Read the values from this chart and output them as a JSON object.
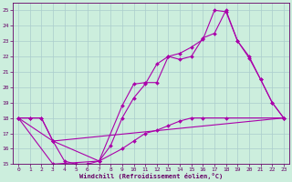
{
  "title": "",
  "xlabel": "Windchill (Refroidissement éolien,°C)",
  "xlim": [
    -0.5,
    23.5
  ],
  "ylim": [
    15,
    25.5
  ],
  "xticks": [
    0,
    1,
    2,
    3,
    4,
    5,
    6,
    7,
    8,
    9,
    10,
    11,
    12,
    13,
    14,
    15,
    16,
    17,
    18,
    19,
    20,
    21,
    22,
    23
  ],
  "yticks": [
    15,
    16,
    17,
    18,
    19,
    20,
    21,
    22,
    23,
    24,
    25
  ],
  "bg_color": "#cceedd",
  "grid_color": "#aacccc",
  "line_color": "#aa00aa",
  "line1_x": [
    0,
    1,
    2,
    3,
    4,
    5,
    6,
    7,
    8,
    9,
    10,
    11,
    12,
    13,
    14,
    15,
    16,
    17,
    18,
    19,
    20,
    21,
    22,
    23
  ],
  "line1_y": [
    18.0,
    18.0,
    18.0,
    16.5,
    15.2,
    15.0,
    15.0,
    15.2,
    16.2,
    18.0,
    19.3,
    20.2,
    21.5,
    22.0,
    22.2,
    22.6,
    23.1,
    25.0,
    24.9,
    23.0,
    21.9,
    20.5,
    19.0,
    18.0
  ],
  "line2_x": [
    0,
    3,
    7,
    9,
    10,
    11,
    12,
    13,
    14,
    15,
    16,
    17,
    18,
    19,
    20,
    21,
    22,
    23
  ],
  "line2_y": [
    18.0,
    16.5,
    15.2,
    18.8,
    20.2,
    20.3,
    20.3,
    22.0,
    21.8,
    22.0,
    23.2,
    23.5,
    25.0,
    23.0,
    22.0,
    20.5,
    19.0,
    18.0
  ],
  "line3_x": [
    0,
    1,
    2,
    3,
    23
  ],
  "line3_y": [
    18.0,
    18.0,
    18.0,
    16.5,
    18.0
  ],
  "line4_x": [
    0,
    3,
    7,
    9,
    10,
    11,
    12,
    13,
    14,
    15,
    16,
    18,
    23
  ],
  "line4_y": [
    18.0,
    15.0,
    15.2,
    16.0,
    16.5,
    17.0,
    17.2,
    17.5,
    17.8,
    18.0,
    18.0,
    18.0,
    18.0
  ],
  "font_family": "monospace"
}
